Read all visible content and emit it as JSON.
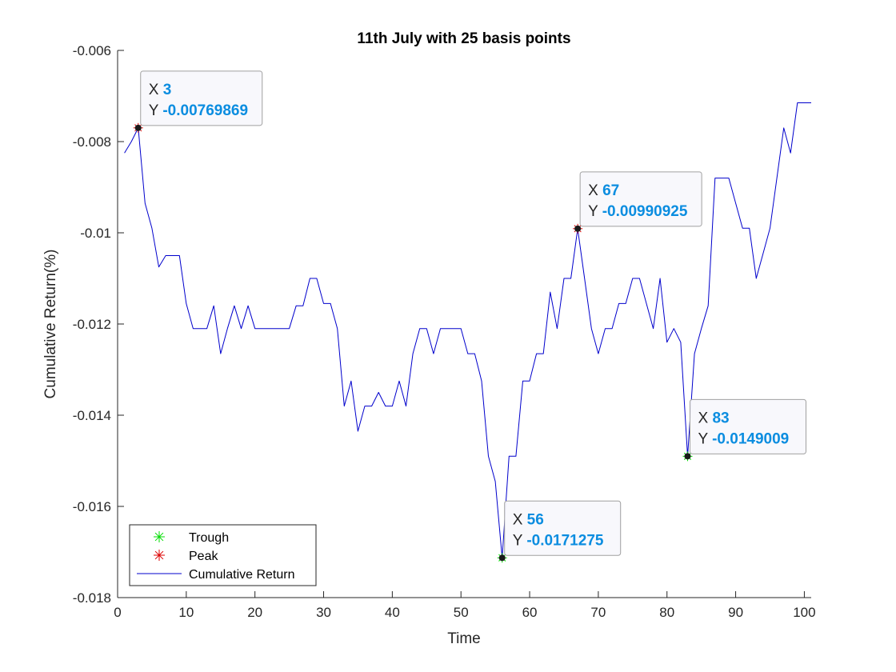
{
  "chart_data": {
    "type": "line",
    "title": "11th July with 25 basis points",
    "xlabel": "Time",
    "ylabel": "Cumulative Return(%)",
    "xlim": [
      0,
      101
    ],
    "ylim": [
      -0.018,
      -0.006
    ],
    "xticks": [
      0,
      10,
      20,
      30,
      40,
      50,
      60,
      70,
      80,
      90,
      100
    ],
    "yticks": [
      -0.018,
      -0.016,
      -0.014,
      -0.012,
      -0.01,
      -0.008,
      -0.006
    ],
    "xtick_labels": [
      "0",
      "10",
      "20",
      "30",
      "40",
      "50",
      "60",
      "70",
      "80",
      "90",
      "100"
    ],
    "ytick_labels": [
      "-0.018",
      "-0.016",
      "-0.014",
      "-0.012",
      "-0.01",
      "-0.008",
      "-0.006"
    ],
    "grid": false,
    "legend_position": "bottom-left",
    "series": [
      {
        "name": "Cumulative Return",
        "color": "#0000cc",
        "x": [
          1,
          2,
          3,
          4,
          5,
          6,
          7,
          8,
          9,
          10,
          11,
          12,
          13,
          14,
          15,
          16,
          17,
          18,
          19,
          20,
          21,
          22,
          23,
          24,
          25,
          26,
          27,
          28,
          29,
          30,
          31,
          32,
          33,
          34,
          35,
          36,
          37,
          38,
          39,
          40,
          41,
          42,
          43,
          44,
          45,
          46,
          47,
          48,
          49,
          50,
          51,
          52,
          53,
          54,
          55,
          56,
          57,
          58,
          59,
          60,
          61,
          62,
          63,
          64,
          65,
          66,
          67,
          68,
          69,
          70,
          71,
          72,
          73,
          74,
          75,
          76,
          77,
          78,
          79,
          80,
          81,
          82,
          83,
          84,
          85,
          86,
          87,
          88,
          89,
          90,
          91,
          92,
          93,
          94,
          95,
          96,
          97,
          98,
          99,
          100,
          101
        ],
        "y": [
          -0.00825,
          -0.008,
          -0.0077,
          -0.00935,
          -0.0099,
          -0.01075,
          -0.0105,
          -0.0105,
          -0.0105,
          -0.01155,
          -0.0121,
          -0.0121,
          -0.0121,
          -0.0116,
          -0.01265,
          -0.0121,
          -0.0116,
          -0.0121,
          -0.0116,
          -0.0121,
          -0.0121,
          -0.0121,
          -0.0121,
          -0.0121,
          -0.0121,
          -0.0116,
          -0.0116,
          -0.011,
          -0.011,
          -0.01155,
          -0.01155,
          -0.0121,
          -0.0138,
          -0.01325,
          -0.01435,
          -0.0138,
          -0.0138,
          -0.0135,
          -0.0138,
          -0.0138,
          -0.01325,
          -0.0138,
          -0.01265,
          -0.0121,
          -0.0121,
          -0.01265,
          -0.0121,
          -0.0121,
          -0.0121,
          -0.0121,
          -0.01265,
          -0.01265,
          -0.01325,
          -0.0149,
          -0.01545,
          -0.01713,
          -0.0149,
          -0.0149,
          -0.01325,
          -0.01325,
          -0.01265,
          -0.01265,
          -0.0113,
          -0.0121,
          -0.011,
          -0.011,
          -0.00991,
          -0.011,
          -0.0121,
          -0.01265,
          -0.0121,
          -0.0121,
          -0.01155,
          -0.01155,
          -0.011,
          -0.011,
          -0.01155,
          -0.0121,
          -0.011,
          -0.0124,
          -0.0121,
          -0.0124,
          -0.0149,
          -0.01265,
          -0.0121,
          -0.0116,
          -0.0088,
          -0.0088,
          -0.0088,
          -0.00935,
          -0.0099,
          -0.0099,
          -0.011,
          -0.01045,
          -0.0099,
          -0.0088,
          -0.0077,
          -0.00825,
          -0.00715,
          -0.00715,
          -0.00715
        ]
      }
    ],
    "markers": [
      {
        "name": "Trough",
        "symbol": "*",
        "color": "#00dd00",
        "x": [
          56,
          83
        ],
        "y": [
          -0.0171275,
          -0.0149009
        ]
      },
      {
        "name": "Peak",
        "symbol": "*",
        "color": "#dd0000",
        "x": [
          3,
          67
        ],
        "y": [
          -0.00769869,
          -0.00990925
        ]
      }
    ],
    "datatips": [
      {
        "x": 3,
        "y": -0.00769869,
        "x_label": "X",
        "y_label": "Y",
        "x_text": "3",
        "y_text": "-0.00769869"
      },
      {
        "x": 67,
        "y": -0.00990925,
        "x_label": "X",
        "y_label": "Y",
        "x_text": "67",
        "y_text": "-0.00990925"
      },
      {
        "x": 56,
        "y": -0.0171275,
        "x_label": "X",
        "y_label": "Y",
        "x_text": "56",
        "y_text": "-0.0171275"
      },
      {
        "x": 83,
        "y": -0.0149009,
        "x_label": "X",
        "y_label": "Y",
        "x_text": "83",
        "y_text": "-0.0149009"
      }
    ],
    "legend": {
      "entries": [
        {
          "label": "Trough",
          "symbol": "*",
          "color": "#00dd00"
        },
        {
          "label": "Peak",
          "symbol": "*",
          "color": "#dd0000"
        },
        {
          "label": "Cumulative Return",
          "symbol": "line",
          "color": "#0000cc"
        }
      ]
    }
  }
}
